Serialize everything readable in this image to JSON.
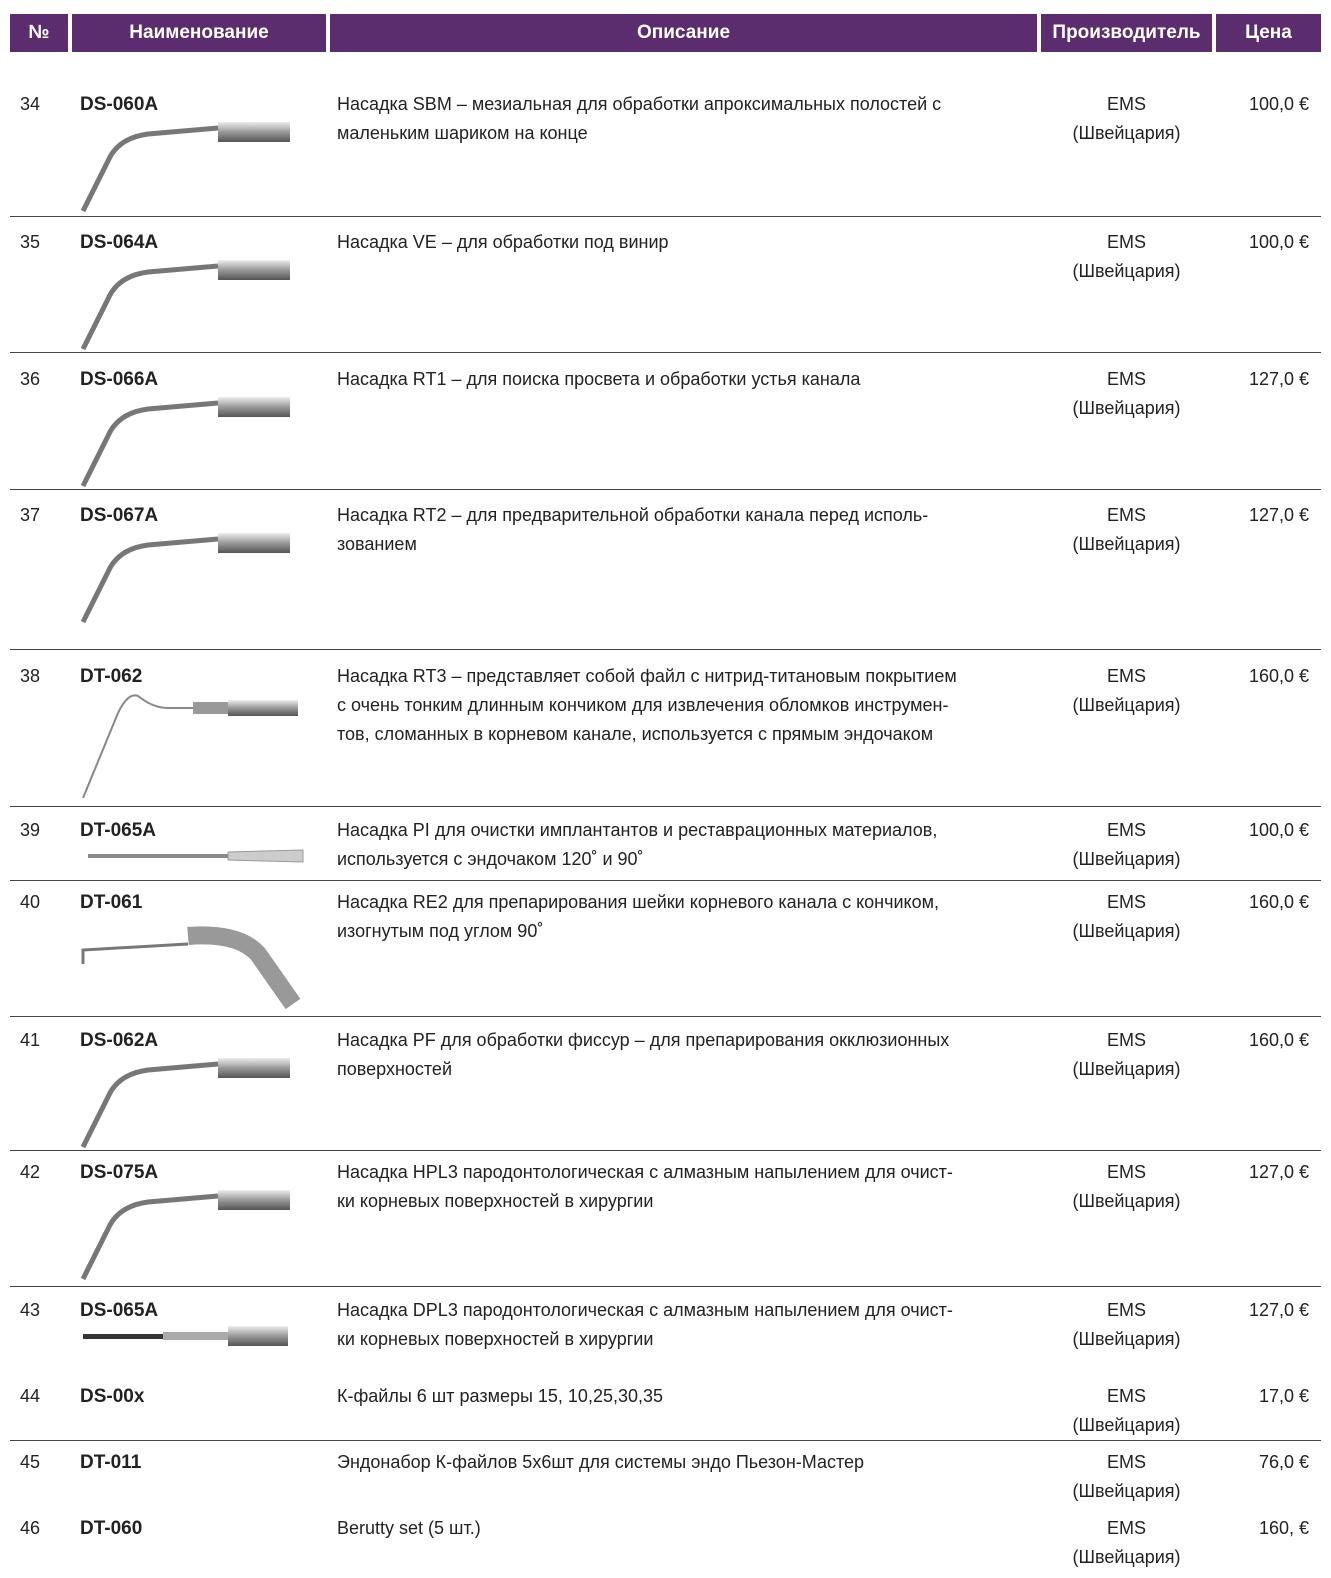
{
  "table": {
    "header": [
      "№",
      "Наименование",
      "Описание",
      "Производитель",
      "Цена"
    ],
    "rows": [
      {
        "no": "34",
        "name": "DS-060A",
        "description": [
          "Насадка SBM – мезиальная для обработки апроксимальных полостей с",
          "маленьким шариком на конце"
        ],
        "maker": [
          "EMS",
          "(Швейцария)"
        ],
        "price": "100,0 €"
      },
      {
        "no": "35",
        "name": "DS-064A",
        "description": [
          "Насадка VE – для обработки под винир"
        ],
        "maker": [
          "EMS",
          "(Швейцария)"
        ],
        "price": "100,0 €"
      },
      {
        "no": "36",
        "name": "DS-066A",
        "description": [
          "Насадка RT1 – для поиска просвета и обработки устья канала"
        ],
        "maker": [
          "EMS",
          "(Швейцария)"
        ],
        "price": "127,0 €"
      },
      {
        "no": "37",
        "name": "DS-067A",
        "description": [
          "Насадка RT2 – для предварительной обработки канала перед исполь-",
          "зованием"
        ],
        "maker": [
          "EMS",
          "(Швейцария)"
        ],
        "price": "127,0 €"
      },
      {
        "no": "38",
        "name": "DT-062",
        "description": [
          "Насадка RT3 – представляет собой файл с нитрид-титановым покрытием",
          "с очень тонким длинным кончиком для извлечения обломков инструмен-",
          "тов, сломанных в корневом канале, используется с прямым эндочаком"
        ],
        "maker": [
          "EMS",
          "(Швейцария)"
        ],
        "price": "160,0 €"
      },
      {
        "no": "39",
        "name": "DT-065A",
        "description": [
          "Насадка PI для очистки имплантантов и реставрационных материалов,",
          "используется с эндочаком 120˚ и 90˚"
        ],
        "maker": [
          "EMS",
          "(Швейцария)"
        ],
        "price": "100,0 €"
      },
      {
        "no": "40",
        "name": "DT-061",
        "description": [
          "Насадка RE2 для препарирования шейки корневого канала с кончиком,",
          "изогнутым под углом 90˚"
        ],
        "maker": [
          "EMS",
          "(Швейцария)"
        ],
        "price": "160,0 €"
      },
      {
        "no": "41",
        "name": "DS-062A",
        "description": [
          "Насадка PF для обработки фиссур – для препарирования окклюзионных",
          "поверхностей"
        ],
        "maker": [
          "EMS",
          "(Швейцария)"
        ],
        "price": "160,0 €"
      },
      {
        "no": "42",
        "name": "DS-075A",
        "description": [
          "Насадка HPL3 пародонтологическая с алмазным напылением для очист-",
          "ки корневых поверхностей в хирургии"
        ],
        "maker": [
          "EMS",
          "(Швейцария)"
        ],
        "price": "127,0 €"
      },
      {
        "no": "43",
        "name": "DS-065A",
        "description": [
          "Насадка DPL3 пародонтологическая с алмазным напылением для очист-",
          "ки корневых поверхностей в хирургии"
        ],
        "maker": [
          "EMS",
          "(Швейцария)"
        ],
        "price": "127,0 €"
      },
      {
        "no": "44",
        "name": "DS-00x",
        "description": [
          "К-файлы 6 шт размеры 15, 10,25,30,35"
        ],
        "maker": [
          "EMS",
          "(Швейцария)"
        ],
        "price": "17,0 €"
      },
      {
        "no": "45",
        "name": "DT-011",
        "description": [
          "Эндонабор К-файлов 5х6шт для системы эндо  Пьезон-Мастер"
        ],
        "maker": [
          "EMS",
          "(Швейцария)"
        ],
        "price": "76,0 €"
      },
      {
        "no": "46",
        "name": "DT-060",
        "description": [
          "Berutty set  (5 шт.)"
        ],
        "maker": [
          "EMS",
          "(Швейцария)"
        ],
        "price": "160, €"
      }
    ]
  }
}
